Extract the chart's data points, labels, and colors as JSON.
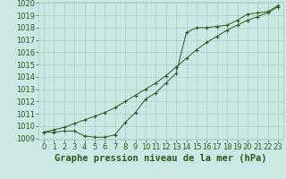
{
  "xlabel": "Graphe pression niveau de la mer (hPa)",
  "x": [
    0,
    1,
    2,
    3,
    4,
    5,
    6,
    7,
    8,
    9,
    10,
    11,
    12,
    13,
    14,
    15,
    16,
    17,
    18,
    19,
    20,
    21,
    22,
    23
  ],
  "line1": [
    1009.5,
    1009.5,
    1009.6,
    1009.6,
    1009.2,
    1009.1,
    1009.1,
    1009.3,
    1010.3,
    1011.1,
    1012.2,
    1012.7,
    1013.5,
    1014.3,
    1017.6,
    1018.0,
    1018.0,
    1018.1,
    1018.2,
    1018.6,
    1019.1,
    1019.2,
    1019.3,
    1019.8
  ],
  "line2": [
    1009.5,
    1009.7,
    1009.9,
    1010.2,
    1010.5,
    1010.8,
    1011.1,
    1011.5,
    1012.0,
    1012.5,
    1013.0,
    1013.5,
    1014.1,
    1014.8,
    1015.5,
    1016.2,
    1016.8,
    1017.3,
    1017.8,
    1018.2,
    1018.6,
    1018.9,
    1019.2,
    1019.7
  ],
  "ylim": [
    1009,
    1020
  ],
  "xlim": [
    -0.5,
    23.5
  ],
  "yticks": [
    1009,
    1010,
    1011,
    1012,
    1013,
    1014,
    1015,
    1016,
    1017,
    1018,
    1019,
    1020
  ],
  "xticks": [
    0,
    1,
    2,
    3,
    4,
    5,
    6,
    7,
    8,
    9,
    10,
    11,
    12,
    13,
    14,
    15,
    16,
    17,
    18,
    19,
    20,
    21,
    22,
    23
  ],
  "line_color": "#2d5a1b",
  "marker": "+",
  "bg_color": "#cce8e4",
  "grid_color": "#aaccc8",
  "xlabel_fontsize": 7.5,
  "tick_fontsize": 6
}
